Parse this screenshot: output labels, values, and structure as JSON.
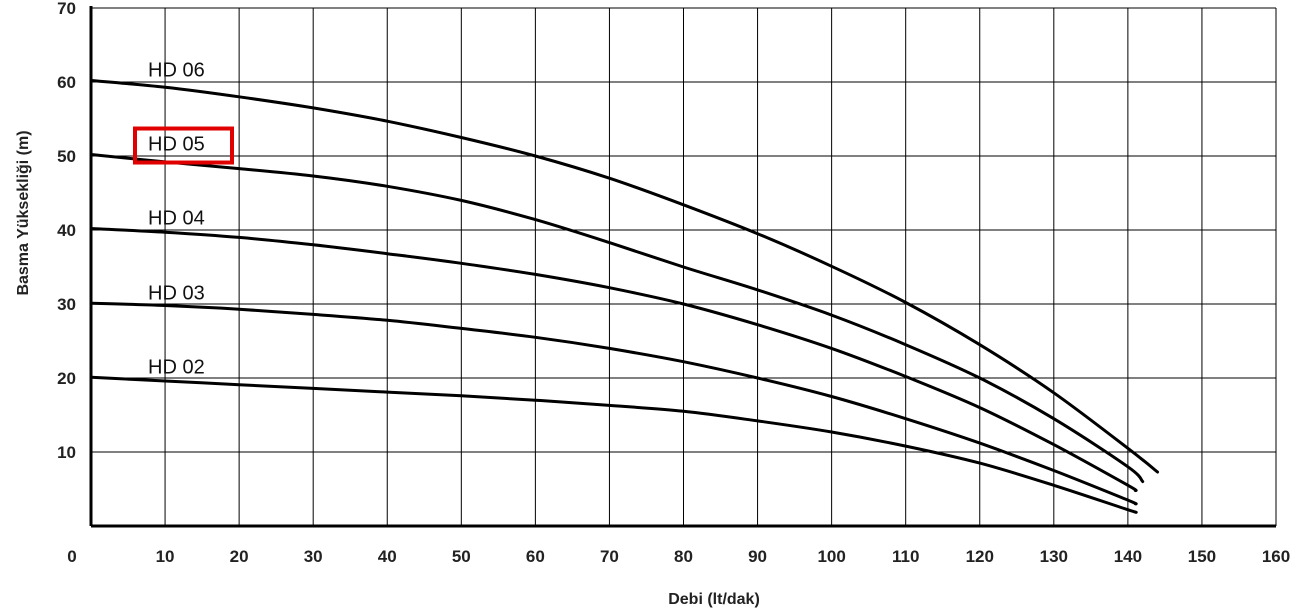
{
  "chart_data": {
    "type": "line",
    "title": "",
    "xlabel": "Debi (lt/dak)",
    "ylabel": "Basma Yüksekliği (m)",
    "xlim": [
      0,
      160
    ],
    "ylim": [
      0,
      70
    ],
    "x_ticks": [
      0,
      10,
      20,
      30,
      40,
      50,
      60,
      70,
      80,
      90,
      100,
      110,
      120,
      130,
      140,
      150,
      160
    ],
    "x_tick_labels": [
      "0",
      "10",
      "20",
      "30",
      "40",
      "50",
      "60",
      "70",
      "80",
      "90",
      "100",
      "110",
      "120",
      "130",
      "140",
      "150",
      "160"
    ],
    "y_ticks": [
      10,
      20,
      30,
      40,
      50,
      60,
      70
    ],
    "y_tick_labels": [
      "10",
      "20",
      "30",
      "40",
      "50",
      "60",
      "70"
    ],
    "grid": true,
    "highlighted_series": "HD 05",
    "highlight_color": "#e00000",
    "series": [
      {
        "name": "HD 06",
        "x": [
          0,
          10,
          20,
          30,
          40,
          50,
          60,
          70,
          80,
          90,
          100,
          110,
          120,
          130,
          140,
          144
        ],
        "y": [
          60.2,
          59.3,
          58.0,
          56.5,
          54.7,
          52.5,
          50.0,
          47.0,
          43.4,
          39.5,
          35.1,
          30.2,
          24.5,
          18.0,
          10.5,
          7.3
        ]
      },
      {
        "name": "HD 05",
        "x": [
          0,
          10,
          20,
          30,
          40,
          50,
          60,
          70,
          80,
          90,
          100,
          110,
          120,
          130,
          140,
          142
        ],
        "y": [
          50.2,
          49.2,
          48.3,
          47.3,
          45.9,
          44.0,
          41.4,
          38.3,
          35.0,
          31.9,
          28.5,
          24.5,
          20.0,
          14.5,
          8.0,
          6.0
        ]
      },
      {
        "name": "HD 04",
        "x": [
          0,
          10,
          20,
          30,
          40,
          50,
          60,
          70,
          80,
          90,
          100,
          110,
          120,
          130,
          140,
          141
        ],
        "y": [
          40.2,
          39.7,
          39.0,
          38.0,
          36.8,
          35.5,
          34.0,
          32.2,
          30.0,
          27.2,
          24.0,
          20.2,
          16.0,
          11.0,
          5.5,
          4.8
        ]
      },
      {
        "name": "HD 03",
        "x": [
          0,
          10,
          20,
          30,
          40,
          50,
          60,
          70,
          80,
          90,
          100,
          110,
          120,
          130,
          140,
          141
        ],
        "y": [
          30.1,
          29.8,
          29.3,
          28.6,
          27.8,
          26.7,
          25.5,
          24.0,
          22.2,
          20.0,
          17.5,
          14.5,
          11.2,
          7.5,
          3.5,
          3.0
        ]
      },
      {
        "name": "HD 02",
        "x": [
          0,
          10,
          20,
          30,
          40,
          50,
          60,
          70,
          80,
          90,
          100,
          110,
          120,
          130,
          140,
          141
        ],
        "y": [
          20.1,
          19.6,
          19.1,
          18.6,
          18.1,
          17.6,
          17.0,
          16.3,
          15.5,
          14.2,
          12.7,
          10.8,
          8.5,
          5.5,
          2.2,
          1.9
        ]
      }
    ]
  }
}
